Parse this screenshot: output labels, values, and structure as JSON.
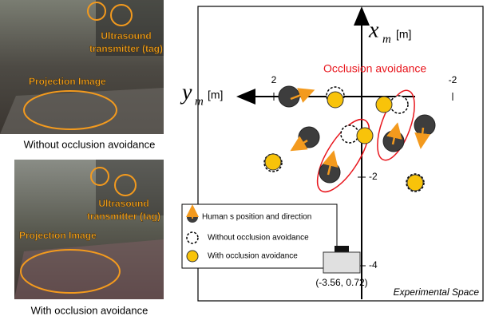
{
  "photos": [
    {
      "tag_label": [
        "Ultrasound",
        "transmitter (tag)"
      ],
      "projection_label": "Projection Image",
      "caption": "Without occlusion avoidance"
    },
    {
      "tag_label": [
        "Ultrasound",
        "transmitter (tag)"
      ],
      "projection_label": "Projection Image",
      "caption": "With occlusion avoidance"
    }
  ],
  "diagram": {
    "x_axis": {
      "symbol": "x",
      "subscript": "m",
      "unit": "[m]"
    },
    "y_axis": {
      "symbol": "y",
      "subscript": "m",
      "unit": "[m]"
    },
    "y_axis_ticks": [
      "2",
      "-2"
    ],
    "x_axis_ticks": [
      "-2",
      "-4"
    ],
    "annotation": "Occlusion avoidance",
    "legend": [
      "Human s position and direction",
      "Without occlusion avoidance",
      "With occlusion avoidance"
    ],
    "robot_label": "(-3.56, 0.72)",
    "space_label": "Experimental Space"
  }
}
